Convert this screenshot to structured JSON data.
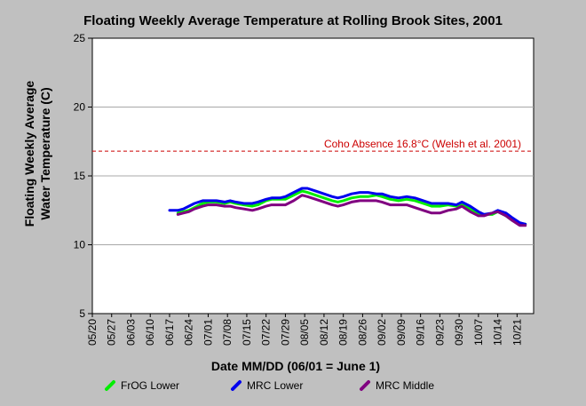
{
  "chart_data": {
    "type": "line",
    "title": "Floating Weekly Average Temperature at Rolling Brook Sites, 2001",
    "xlabel": "Date MM/DD (06/01 = June 1)",
    "ylabel_line1": "Floating Weekly Average",
    "ylabel_line2": "Water Temperature (C)",
    "ylim": [
      5,
      25
    ],
    "yticks": [
      5,
      10,
      15,
      20,
      25
    ],
    "xlim_day": [
      0,
      160
    ],
    "xticks": [
      {
        "day": 0,
        "label": "05/20"
      },
      {
        "day": 7,
        "label": "05/27"
      },
      {
        "day": 14,
        "label": "06/03"
      },
      {
        "day": 21,
        "label": "06/10"
      },
      {
        "day": 28,
        "label": "06/17"
      },
      {
        "day": 35,
        "label": "06/24"
      },
      {
        "day": 42,
        "label": "07/01"
      },
      {
        "day": 49,
        "label": "07/08"
      },
      {
        "day": 56,
        "label": "07/15"
      },
      {
        "day": 63,
        "label": "07/22"
      },
      {
        "day": 70,
        "label": "07/29"
      },
      {
        "day": 77,
        "label": "08/05"
      },
      {
        "day": 84,
        "label": "08/12"
      },
      {
        "day": 91,
        "label": "08/19"
      },
      {
        "day": 98,
        "label": "08/26"
      },
      {
        "day": 105,
        "label": "09/02"
      },
      {
        "day": 112,
        "label": "09/09"
      },
      {
        "day": 119,
        "label": "09/16"
      },
      {
        "day": 126,
        "label": "09/23"
      },
      {
        "day": 133,
        "label": "09/30"
      },
      {
        "day": 140,
        "label": "10/07"
      },
      {
        "day": 147,
        "label": "10/14"
      },
      {
        "day": 154,
        "label": "10/21"
      }
    ],
    "reference_line": {
      "y": 16.8,
      "label": "Coho Absence 16.8°C (Welsh et al. 2001)",
      "color": "#cc0000"
    },
    "grid": true,
    "legend_position": "bottom",
    "series": [
      {
        "name": "FrOG Lower",
        "color": "#00ee00",
        "points": [
          [
            31,
            12.3
          ],
          [
            33,
            12.4
          ],
          [
            35,
            12.5
          ],
          [
            37,
            12.7
          ],
          [
            40,
            13.0
          ],
          [
            42,
            13.1
          ],
          [
            45,
            13.1
          ],
          [
            48,
            13.0
          ],
          [
            50,
            13.1
          ],
          [
            52,
            13.0
          ],
          [
            55,
            12.9
          ],
          [
            58,
            12.8
          ],
          [
            60,
            12.9
          ],
          [
            63,
            13.2
          ],
          [
            65,
            13.3
          ],
          [
            68,
            13.3
          ],
          [
            70,
            13.3
          ],
          [
            73,
            13.6
          ],
          [
            76,
            13.9
          ],
          [
            78,
            13.8
          ],
          [
            81,
            13.6
          ],
          [
            84,
            13.4
          ],
          [
            87,
            13.2
          ],
          [
            89,
            13.1
          ],
          [
            91,
            13.2
          ],
          [
            94,
            13.4
          ],
          [
            97,
            13.5
          ],
          [
            100,
            13.5
          ],
          [
            103,
            13.6
          ],
          [
            105,
            13.5
          ],
          [
            108,
            13.3
          ],
          [
            111,
            13.2
          ],
          [
            114,
            13.3
          ],
          [
            117,
            13.2
          ],
          [
            120,
            13.0
          ],
          [
            123,
            12.8
          ],
          [
            126,
            12.8
          ],
          [
            129,
            12.9
          ],
          [
            132,
            12.8
          ],
          [
            134,
            12.9
          ],
          [
            137,
            12.6
          ],
          [
            140,
            12.3
          ],
          [
            142,
            12.2
          ],
          [
            145,
            12.2
          ],
          [
            147,
            12.4
          ],
          [
            150,
            12.1
          ],
          [
            152,
            11.8
          ],
          [
            155,
            11.5
          ],
          [
            157,
            11.5
          ]
        ]
      },
      {
        "name": "MRC Lower",
        "color": "#0000ee",
        "points": [
          [
            28,
            12.5
          ],
          [
            31,
            12.5
          ],
          [
            33,
            12.6
          ],
          [
            35,
            12.8
          ],
          [
            37,
            13.0
          ],
          [
            40,
            13.2
          ],
          [
            42,
            13.2
          ],
          [
            45,
            13.2
          ],
          [
            48,
            13.1
          ],
          [
            50,
            13.2
          ],
          [
            52,
            13.1
          ],
          [
            55,
            13.0
          ],
          [
            58,
            13.0
          ],
          [
            60,
            13.1
          ],
          [
            63,
            13.3
          ],
          [
            65,
            13.4
          ],
          [
            68,
            13.4
          ],
          [
            70,
            13.5
          ],
          [
            73,
            13.8
          ],
          [
            76,
            14.1
          ],
          [
            78,
            14.1
          ],
          [
            81,
            13.9
          ],
          [
            84,
            13.7
          ],
          [
            87,
            13.5
          ],
          [
            89,
            13.4
          ],
          [
            91,
            13.5
          ],
          [
            94,
            13.7
          ],
          [
            97,
            13.8
          ],
          [
            100,
            13.8
          ],
          [
            103,
            13.7
          ],
          [
            105,
            13.7
          ],
          [
            108,
            13.5
          ],
          [
            111,
            13.4
          ],
          [
            114,
            13.5
          ],
          [
            117,
            13.4
          ],
          [
            120,
            13.2
          ],
          [
            123,
            13.0
          ],
          [
            126,
            13.0
          ],
          [
            129,
            13.0
          ],
          [
            132,
            12.9
          ],
          [
            134,
            13.1
          ],
          [
            137,
            12.8
          ],
          [
            140,
            12.4
          ],
          [
            142,
            12.2
          ],
          [
            145,
            12.3
          ],
          [
            147,
            12.5
          ],
          [
            150,
            12.3
          ],
          [
            152,
            12.0
          ],
          [
            155,
            11.6
          ],
          [
            157,
            11.5
          ]
        ]
      },
      {
        "name": "MRC Middle",
        "color": "#800080",
        "points": [
          [
            31,
            12.2
          ],
          [
            33,
            12.3
          ],
          [
            35,
            12.4
          ],
          [
            37,
            12.6
          ],
          [
            40,
            12.8
          ],
          [
            42,
            12.9
          ],
          [
            45,
            12.9
          ],
          [
            48,
            12.8
          ],
          [
            50,
            12.8
          ],
          [
            52,
            12.7
          ],
          [
            55,
            12.6
          ],
          [
            58,
            12.5
          ],
          [
            60,
            12.6
          ],
          [
            63,
            12.8
          ],
          [
            65,
            12.9
          ],
          [
            68,
            12.9
          ],
          [
            70,
            12.9
          ],
          [
            73,
            13.2
          ],
          [
            76,
            13.6
          ],
          [
            78,
            13.5
          ],
          [
            81,
            13.3
          ],
          [
            84,
            13.1
          ],
          [
            87,
            12.9
          ],
          [
            89,
            12.8
          ],
          [
            91,
            12.9
          ],
          [
            94,
            13.1
          ],
          [
            97,
            13.2
          ],
          [
            100,
            13.2
          ],
          [
            103,
            13.2
          ],
          [
            105,
            13.1
          ],
          [
            108,
            12.9
          ],
          [
            111,
            12.9
          ],
          [
            114,
            12.9
          ],
          [
            117,
            12.7
          ],
          [
            120,
            12.5
          ],
          [
            123,
            12.3
          ],
          [
            126,
            12.3
          ],
          [
            129,
            12.5
          ],
          [
            132,
            12.6
          ],
          [
            134,
            12.8
          ],
          [
            137,
            12.4
          ],
          [
            140,
            12.1
          ],
          [
            142,
            12.1
          ],
          [
            145,
            12.3
          ],
          [
            147,
            12.4
          ],
          [
            150,
            12.1
          ],
          [
            152,
            11.8
          ],
          [
            155,
            11.4
          ],
          [
            157,
            11.4
          ]
        ]
      }
    ]
  }
}
